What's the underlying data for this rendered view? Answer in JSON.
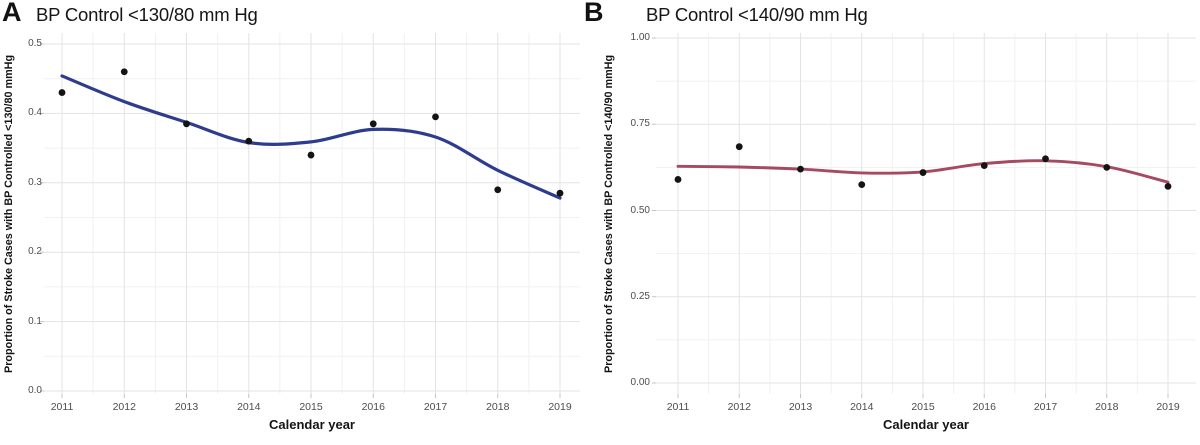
{
  "figure": {
    "background": "#ffffff",
    "grid_major_color": "#e3e3e3",
    "grid_minor_color": "#f1f1f1",
    "tick_label_color": "#4d4d4d"
  },
  "chart_data": [
    {
      "type": "scatter",
      "smooth_type": "loess",
      "panel_tag": "A",
      "title": "BP Control <130/80 mm Hg",
      "xlabel": "Calendar year",
      "ylabel": "Proportion of Stroke Cases with BP Controlled <130/80 mmHg",
      "x": [
        2011,
        2012,
        2013,
        2014,
        2015,
        2016,
        2017,
        2018,
        2019
      ],
      "x_tick_labels": [
        "2011",
        "2012",
        "2013",
        "2014",
        "2015",
        "2016",
        "2017",
        "2018",
        "2019"
      ],
      "points": [
        0.43,
        0.46,
        0.385,
        0.36,
        0.34,
        0.385,
        0.395,
        0.29,
        0.285
      ],
      "smooth_line": [
        0.454,
        0.417,
        0.387,
        0.358,
        0.359,
        0.377,
        0.366,
        0.318,
        0.278
      ],
      "ylim": [
        0.0,
        0.5
      ],
      "yticks": [
        0.0,
        0.1,
        0.2,
        0.3,
        0.4,
        0.5
      ],
      "ytick_labels": [
        "0.0",
        "0.1",
        "0.2",
        "0.3",
        "0.4",
        "0.5"
      ],
      "grid": "major+minor",
      "legend": "none",
      "line_color": "#2e3c8e",
      "point_color": "#141414"
    },
    {
      "type": "scatter",
      "smooth_type": "loess",
      "panel_tag": "B",
      "title": "BP Control <140/90 mm Hg",
      "xlabel": "Calendar year",
      "ylabel": "Proportion of Stroke Cases with BP Controlled <140/90 mmHg",
      "x": [
        2011,
        2012,
        2013,
        2014,
        2015,
        2016,
        2017,
        2018,
        2019
      ],
      "x_tick_labels": [
        "2011",
        "2012",
        "2013",
        "2014",
        "2015",
        "2016",
        "2017",
        "2018",
        "2019"
      ],
      "points": [
        0.59,
        0.685,
        0.62,
        0.575,
        0.61,
        0.63,
        0.65,
        0.625,
        0.57
      ],
      "smooth_line": [
        0.628,
        0.626,
        0.62,
        0.609,
        0.612,
        0.636,
        0.644,
        0.627,
        0.582
      ],
      "ylim": [
        0.0,
        1.0
      ],
      "yticks": [
        0.0,
        0.25,
        0.5,
        0.75,
        1.0
      ],
      "ytick_labels": [
        "0.00",
        "0.25",
        "0.50",
        "0.75",
        "1.00"
      ],
      "grid": "major+minor",
      "legend": "none",
      "line_color": "#a64a62",
      "point_color": "#141414"
    }
  ]
}
